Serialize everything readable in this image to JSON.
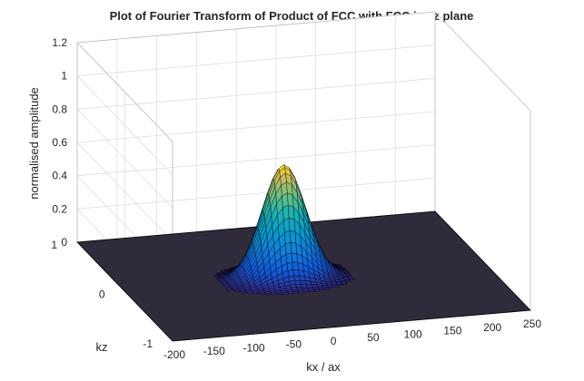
{
  "chart_data": {
    "type": "surface",
    "title": "Plot of Fourier Transform of Product of FCC with FCC in xz plane",
    "xlabel": "kx / ax",
    "ylabel": "kz",
    "zlabel": "normalised amplitude",
    "xlim": [
      -200,
      250
    ],
    "ylim": [
      -1,
      1
    ],
    "zlim": [
      0,
      1.2
    ],
    "xticks": [
      "-200",
      "-150",
      "-100",
      "-50",
      "0",
      "50",
      "100",
      "150",
      "200",
      "250"
    ],
    "xtick_values": [
      -200,
      -150,
      -100,
      -50,
      0,
      50,
      100,
      150,
      200,
      250
    ],
    "yticks": [
      "-1",
      "0",
      "1"
    ],
    "ytick_values": [
      -1,
      0,
      1
    ],
    "zticks": [
      "0",
      "0.2",
      "0.4",
      "0.6",
      "0.8",
      "1",
      "1.2"
    ],
    "ztick_values": [
      0,
      0.2,
      0.4,
      0.6,
      0.8,
      1,
      1.2
    ],
    "grid": true,
    "colormap": "parula",
    "surface": {
      "description_of_shape": "single Gaussian-like peak",
      "peak_kx": 0,
      "peak_kz": 0,
      "peak_value": 0.68,
      "baseline_value": 0
    }
  }
}
